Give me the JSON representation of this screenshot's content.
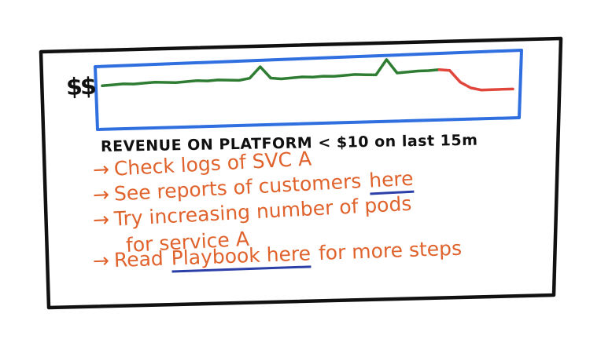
{
  "note": {
    "ylabel": "$$",
    "chart_title": "REVENUE ON PLATFORM < $10 on last 15m"
  },
  "steps": [
    {
      "arrow": "→",
      "text": "Check logs of SVC A"
    },
    {
      "arrow": "→",
      "text_before": "See reports of customers",
      "link": "here"
    },
    {
      "arrow": "→",
      "text": "Try increasing number of pods",
      "continuation": "for service A"
    },
    {
      "arrow": "→",
      "text_before": "Read",
      "link": "Playbook here",
      "text_after": "for more steps"
    }
  ],
  "colors": {
    "frame": "#111111",
    "chart_border": "#2f6fe0",
    "line_normal": "#2e7d32",
    "line_drop": "#e0463c",
    "steps_text": "#e0622c",
    "link_underline": "#2b3fa8"
  },
  "chart_data": {
    "type": "line",
    "title": "REVENUE ON PLATFORM < $10 on last 15m",
    "ylabel": "$$",
    "xlabel": "",
    "x": [
      0,
      1,
      2,
      3,
      4,
      5,
      6,
      7,
      8,
      9,
      10,
      11,
      12,
      13,
      14,
      15,
      16,
      17,
      18,
      19,
      20,
      21,
      22,
      23,
      24,
      25,
      26,
      27,
      28,
      29,
      30,
      31,
      32,
      33,
      34,
      35,
      36,
      37,
      38,
      39
    ],
    "ylim": [
      0,
      100
    ],
    "series": [
      {
        "values": [
          70,
          71,
          72,
          71,
          72,
          73,
          72,
          71,
          72,
          73,
          72,
          73,
          72,
          71,
          74,
          93,
          73,
          71,
          72,
          73,
          72,
          73,
          72,
          73,
          74,
          73,
          72,
          97,
          74,
          75,
          76,
          76,
          77,
          75,
          55,
          45,
          41,
          41,
          41,
          41
        ]
      }
    ],
    "drop_start_index": 32
  }
}
